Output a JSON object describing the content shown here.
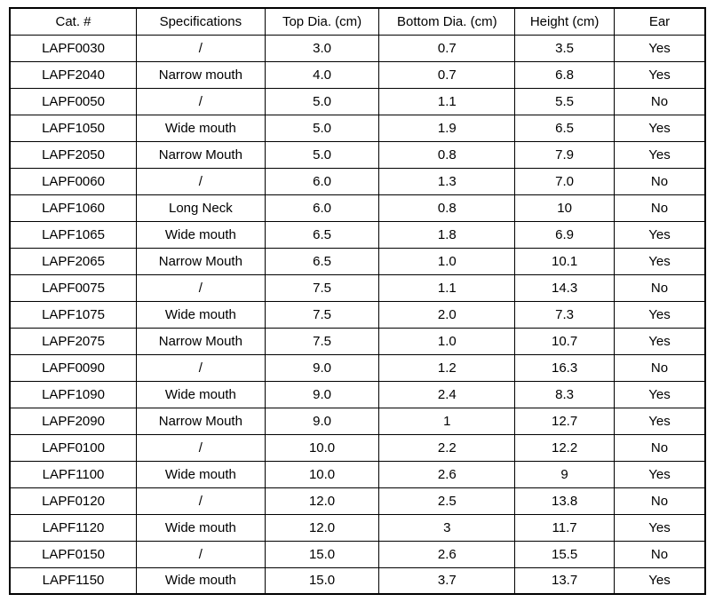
{
  "table": {
    "columns": [
      {
        "key": "cat",
        "label": "Cat. #"
      },
      {
        "key": "spec",
        "label": "Specifications"
      },
      {
        "key": "top_dia",
        "label": "Top Dia. (cm)"
      },
      {
        "key": "bottom_dia",
        "label": "Bottom Dia. (cm)"
      },
      {
        "key": "height",
        "label": "Height (cm)"
      },
      {
        "key": "ear",
        "label": "Ear"
      }
    ],
    "rows": [
      [
        "LAPF0030",
        "/",
        "3.0",
        "0.7",
        "3.5",
        "Yes"
      ],
      [
        "LAPF2040",
        "Narrow mouth",
        "4.0",
        "0.7",
        "6.8",
        "Yes"
      ],
      [
        "LAPF0050",
        "/",
        "5.0",
        "1.1",
        "5.5",
        "No"
      ],
      [
        "LAPF1050",
        "Wide mouth",
        "5.0",
        "1.9",
        "6.5",
        "Yes"
      ],
      [
        "LAPF2050",
        "Narrow Mouth",
        "5.0",
        "0.8",
        "7.9",
        "Yes"
      ],
      [
        "LAPF0060",
        "/",
        "6.0",
        "1.3",
        "7.0",
        "No"
      ],
      [
        "LAPF1060",
        "Long Neck",
        "6.0",
        "0.8",
        "10",
        "No"
      ],
      [
        "LAPF1065",
        "Wide mouth",
        "6.5",
        "1.8",
        "6.9",
        "Yes"
      ],
      [
        "LAPF2065",
        "Narrow Mouth",
        "6.5",
        "1.0",
        "10.1",
        "Yes"
      ],
      [
        "LAPF0075",
        "/",
        "7.5",
        "1.1",
        "14.3",
        "No"
      ],
      [
        "LAPF1075",
        "Wide mouth",
        "7.5",
        "2.0",
        "7.3",
        "Yes"
      ],
      [
        "LAPF2075",
        "Narrow Mouth",
        "7.5",
        "1.0",
        "10.7",
        "Yes"
      ],
      [
        "LAPF0090",
        "/",
        "9.0",
        "1.2",
        "16.3",
        "No"
      ],
      [
        "LAPF1090",
        "Wide mouth",
        "9.0",
        "2.4",
        "8.3",
        "Yes"
      ],
      [
        "LAPF2090",
        "Narrow Mouth",
        "9.0",
        "1",
        "12.7",
        "Yes"
      ],
      [
        "LAPF0100",
        "/",
        "10.0",
        "2.2",
        "12.2",
        "No"
      ],
      [
        "LAPF1100",
        "Wide mouth",
        "10.0",
        "2.6",
        "9",
        "Yes"
      ],
      [
        "LAPF0120",
        "/",
        "12.0",
        "2.5",
        "13.8",
        "No"
      ],
      [
        "LAPF1120",
        "Wide mouth",
        "12.0",
        "3",
        "11.7",
        "Yes"
      ],
      [
        "LAPF0150",
        "/",
        "15.0",
        "2.6",
        "15.5",
        "No"
      ],
      [
        "LAPF1150",
        "Wide mouth",
        "15.0",
        "3.7",
        "13.7",
        "Yes"
      ]
    ],
    "colors": {
      "border": "#000000",
      "text": "#000000",
      "background": "#ffffff"
    }
  }
}
